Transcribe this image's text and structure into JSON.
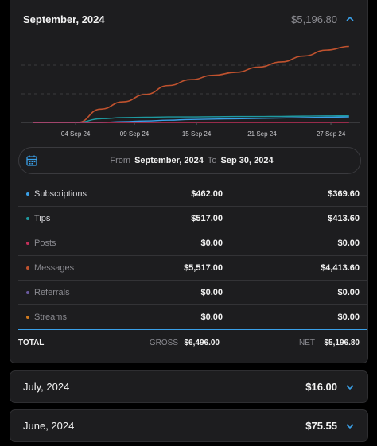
{
  "main": {
    "title": "September, 2024",
    "total": "$5,196.80",
    "date_range": {
      "from_label": "From",
      "from_value": "September, 2024",
      "to_label": "To",
      "to_value": "Sep 30, 2024"
    },
    "rows": [
      {
        "label": "Subscriptions",
        "gross": "$462.00",
        "net": "$369.60",
        "color": "#3aa0e8",
        "dim": false
      },
      {
        "label": "Tips",
        "gross": "$517.00",
        "net": "$413.60",
        "color": "#1e9aa0",
        "dim": false
      },
      {
        "label": "Posts",
        "gross": "$0.00",
        "net": "$0.00",
        "color": "#c2305a",
        "dim": true
      },
      {
        "label": "Messages",
        "gross": "$5,517.00",
        "net": "$4,413.60",
        "color": "#c0522e",
        "dim": true
      },
      {
        "label": "Referrals",
        "gross": "$0.00",
        "net": "$0.00",
        "color": "#6a5aa0",
        "dim": true
      },
      {
        "label": "Streams",
        "gross": "$0.00",
        "net": "$0.00",
        "color": "#d07a1e",
        "dim": true
      }
    ],
    "totals": {
      "label": "TOTAL",
      "gross_label": "GROSS",
      "gross_value": "$6,496.00",
      "net_label": "NET",
      "net_value": "$5,196.80"
    }
  },
  "collapsed_months": [
    {
      "title": "July, 2024",
      "total": "$16.00"
    },
    {
      "title": "June, 2024",
      "total": "$75.55"
    }
  ],
  "chart_data": {
    "type": "line",
    "x_ticks": [
      "04 Sep 24",
      "09 Sep 24",
      "15 Sep 24",
      "21 Sep 24",
      "27 Sep 24"
    ],
    "x": [
      1,
      5,
      7,
      9,
      11,
      13,
      15,
      17,
      19,
      21,
      23,
      25,
      27,
      29
    ],
    "series": [
      {
        "color": "#c0522e",
        "values": [
          0,
          0,
          0.18,
          0.28,
          0.38,
          0.5,
          0.58,
          0.64,
          0.68,
          0.75,
          0.82,
          0.9,
          0.98,
          1.03
        ]
      },
      {
        "color": "#1e9aa0",
        "values": [
          0,
          0,
          0.05,
          0.065,
          0.07,
          0.075,
          0.075,
          0.078,
          0.08,
          0.08,
          0.082,
          0.085,
          0.088,
          0.09
        ]
      },
      {
        "color": "#3aa0e8",
        "values": [
          0,
          0,
          0,
          0.01,
          0.02,
          0.03,
          0.04,
          0.045,
          0.05,
          0.055,
          0.06,
          0.065,
          0.07,
          0.075
        ]
      },
      {
        "color": "#c2305a",
        "values": [
          0,
          0,
          0,
          0,
          0,
          0,
          0,
          0,
          0,
          0,
          0,
          0,
          0,
          0
        ]
      }
    ],
    "ylim": [
      0,
      1.1
    ],
    "grid": true
  },
  "icons": {
    "calendar": "calendar-icon",
    "chevron_up": "chevron-up-icon",
    "chevron_down": "chevron-down-icon"
  },
  "colors": {
    "accent": "#3aa0e8"
  }
}
